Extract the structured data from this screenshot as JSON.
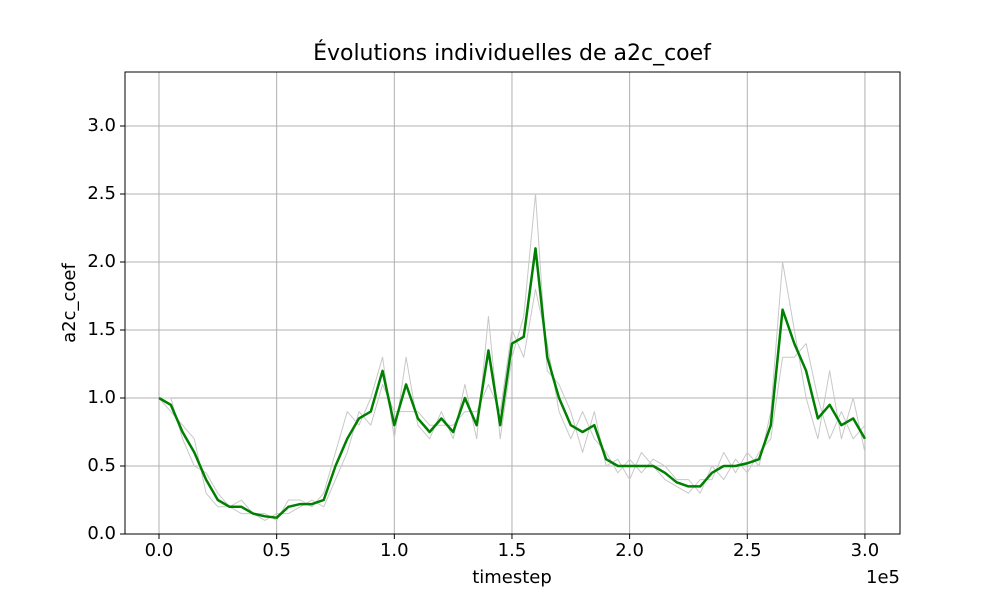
{
  "chart_data": {
    "type": "line",
    "title": "Évolutions individuelles de a2c_coef",
    "x_label": "timestep",
    "y_label": "a2c_coef",
    "x_offset_label": "1e5",
    "x": [
      0,
      0.05,
      0.1,
      0.15,
      0.2,
      0.25,
      0.3,
      0.35,
      0.4,
      0.45,
      0.5,
      0.55,
      0.6,
      0.65,
      0.7,
      0.75,
      0.8,
      0.85,
      0.9,
      0.95,
      1.0,
      1.05,
      1.1,
      1.15,
      1.2,
      1.25,
      1.3,
      1.35,
      1.4,
      1.45,
      1.5,
      1.55,
      1.6,
      1.65,
      1.7,
      1.75,
      1.8,
      1.85,
      1.9,
      1.95,
      2.0,
      2.05,
      2.1,
      2.15,
      2.2,
      2.25,
      2.3,
      2.35,
      2.4,
      2.45,
      2.5,
      2.55,
      2.6,
      2.65,
      2.7,
      2.75,
      2.8,
      2.85,
      2.9,
      2.95,
      3.0
    ],
    "series": [
      {
        "color": "#c8c8c8",
        "width": 1,
        "values": [
          1.0,
          0.9,
          0.8,
          0.7,
          0.3,
          0.2,
          0.2,
          0.25,
          0.15,
          0.15,
          0.1,
          0.25,
          0.25,
          0.2,
          0.3,
          0.6,
          0.9,
          0.8,
          1.0,
          1.3,
          0.7,
          1.3,
          0.8,
          0.7,
          0.9,
          0.7,
          1.1,
          0.7,
          1.6,
          0.7,
          1.3,
          1.6,
          2.5,
          1.2,
          1.1,
          0.9,
          0.6,
          0.9,
          0.5,
          0.55,
          0.4,
          0.6,
          0.5,
          0.4,
          0.35,
          0.3,
          0.4,
          0.4,
          0.6,
          0.45,
          0.6,
          0.5,
          0.9,
          2.0,
          1.5,
          1.0,
          0.7,
          1.2,
          0.7,
          1.0,
          0.6
        ]
      },
      {
        "color": "#c8c8c8",
        "width": 1,
        "values": [
          1.0,
          1.0,
          0.7,
          0.5,
          0.45,
          0.3,
          0.2,
          0.15,
          0.15,
          0.1,
          0.15,
          0.15,
          0.2,
          0.25,
          0.2,
          0.4,
          0.6,
          0.9,
          0.8,
          1.1,
          0.9,
          0.9,
          0.9,
          0.8,
          0.8,
          0.8,
          0.9,
          0.9,
          1.1,
          0.9,
          1.5,
          1.3,
          1.8,
          1.4,
          0.9,
          0.7,
          0.9,
          0.7,
          0.6,
          0.45,
          0.55,
          0.45,
          0.55,
          0.5,
          0.4,
          0.4,
          0.3,
          0.5,
          0.4,
          0.55,
          0.45,
          0.6,
          0.7,
          1.3,
          1.3,
          1.4,
          1.0,
          0.7,
          0.9,
          0.7,
          0.8
        ]
      },
      {
        "color": "#008000",
        "width": 2.5,
        "values": [
          1.0,
          0.95,
          0.75,
          0.6,
          0.4,
          0.25,
          0.2,
          0.2,
          0.15,
          0.13,
          0.12,
          0.2,
          0.22,
          0.22,
          0.25,
          0.5,
          0.7,
          0.85,
          0.9,
          1.2,
          0.8,
          1.1,
          0.85,
          0.75,
          0.85,
          0.75,
          1.0,
          0.8,
          1.35,
          0.8,
          1.4,
          1.45,
          2.1,
          1.3,
          1.0,
          0.8,
          0.75,
          0.8,
          0.55,
          0.5,
          0.5,
          0.5,
          0.5,
          0.45,
          0.38,
          0.35,
          0.35,
          0.45,
          0.5,
          0.5,
          0.52,
          0.55,
          0.8,
          1.65,
          1.4,
          1.2,
          0.85,
          0.95,
          0.8,
          0.85,
          0.7
        ]
      }
    ],
    "xlim": [
      -0.1445,
      3.149
    ],
    "ylim": [
      0,
      3.397
    ],
    "xticks": [
      {
        "value": 0,
        "label": "0.0"
      },
      {
        "value": 0.5,
        "label": "0.5"
      },
      {
        "value": 1,
        "label": "1.0"
      },
      {
        "value": 1.5,
        "label": "1.5"
      },
      {
        "value": 2,
        "label": "2.0"
      },
      {
        "value": 2.5,
        "label": "2.5"
      },
      {
        "value": 3,
        "label": "3.0"
      }
    ],
    "yticks": [
      {
        "value": 0,
        "label": "0.0"
      },
      {
        "value": 0.5,
        "label": "0.5"
      },
      {
        "value": 1,
        "label": "1.0"
      },
      {
        "value": 1.5,
        "label": "1.5"
      },
      {
        "value": 2,
        "label": "2.0"
      },
      {
        "value": 2.5,
        "label": "2.5"
      },
      {
        "value": 3,
        "label": "3.0"
      }
    ],
    "grid": true
  }
}
